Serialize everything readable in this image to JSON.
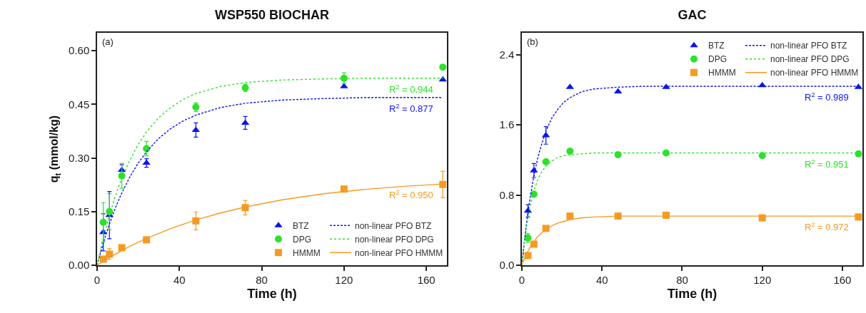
{
  "chart_data": [
    {
      "type": "scatter",
      "title": "WSP550 BIOCHAR",
      "xlabel": "Time (h)",
      "ylabel": "q$_{t}$ (mmol/kg)",
      "xlim": [
        0,
        170
      ],
      "xticks": [
        0,
        40,
        80,
        120,
        160
      ],
      "ylim": [
        0,
        0.65
      ],
      "yticks": [
        {
          "value": 0,
          "label": "0.00"
        },
        {
          "value": 0.15,
          "label": "0.15"
        },
        {
          "value": 0.3,
          "label": "0.30"
        },
        {
          "value": 0.45,
          "label": "0.45"
        },
        {
          "value": 0.6,
          "label": "0.60"
        }
      ],
      "grid": false,
      "legend": "bottom right",
      "annotations": [
        "(a)",
        "R$^{2}$ = 0.877",
        "R$^{2}$ = 0.944",
        "R$^{2}$ = 0.950"
      ],
      "series": [
        {
          "name": "BTZ",
          "type": "scatter",
          "marker": "triangle",
          "color": "#0a14f0",
          "x": [
            3,
            6,
            12,
            24,
            48,
            72,
            120,
            168
          ],
          "values": [
            0.092,
            0.14,
            0.266,
            0.286,
            0.378,
            0.398,
            0.5,
            0.519
          ],
          "errors": [
            0.052,
            0.066,
            0.015,
            0.012,
            0.02,
            0.018,
            null,
            null
          ]
        },
        {
          "name": "DPG",
          "type": "scatter",
          "marker": "circle",
          "color": "#2be22b",
          "x": [
            3,
            6,
            12,
            24,
            48,
            72,
            120,
            168
          ],
          "values": [
            0.12,
            0.15,
            0.25,
            0.326,
            0.442,
            0.496,
            0.523,
            0.554
          ],
          "errors": [
            0.055,
            0.05,
            0.035,
            0.02,
            0.012,
            0.01,
            0.015,
            null
          ]
        },
        {
          "name": "HMMM",
          "type": "scatter",
          "marker": "square",
          "color": "#f59a23",
          "x": [
            3,
            6,
            12,
            24,
            48,
            72,
            120,
            168
          ],
          "values": [
            0.017,
            0.031,
            0.049,
            0.071,
            0.124,
            0.161,
            0.213,
            0.226
          ],
          "errors": [
            null,
            0.015,
            null,
            null,
            0.025,
            0.02,
            0.008,
            0.037
          ]
        },
        {
          "name": "non-linear PFO BTZ",
          "type": "line",
          "line_style": "dashed",
          "color": "#0a14f0",
          "x": [
            0,
            2,
            4,
            6,
            8,
            10,
            12,
            16,
            20,
            24,
            30,
            36,
            42,
            48,
            60,
            72,
            90,
            110,
            130,
            150,
            168
          ],
          "values": [
            0,
            0.042,
            0.08,
            0.115,
            0.147,
            0.176,
            0.202,
            0.248,
            0.286,
            0.317,
            0.355,
            0.383,
            0.404,
            0.42,
            0.441,
            0.453,
            0.462,
            0.466,
            0.469,
            0.469,
            0.469
          ]
        },
        {
          "name": "non-linear PFO DPG",
          "type": "line",
          "line_style": "dotted",
          "color": "#2be22b",
          "x": [
            0,
            2,
            4,
            6,
            8,
            10,
            12,
            16,
            20,
            24,
            30,
            36,
            42,
            48,
            60,
            72,
            90,
            110,
            130,
            150,
            168
          ],
          "values": [
            0,
            0.052,
            0.098,
            0.14,
            0.178,
            0.212,
            0.243,
            0.295,
            0.338,
            0.373,
            0.413,
            0.442,
            0.464,
            0.48,
            0.5,
            0.511,
            0.518,
            0.521,
            0.523,
            0.523,
            0.523
          ]
        },
        {
          "name": "non-linear PFO HMMM",
          "type": "line",
          "line_style": "solid",
          "color": "#f59a23",
          "x": [
            0,
            2,
            4,
            6,
            8,
            10,
            12,
            16,
            20,
            24,
            30,
            36,
            42,
            48,
            60,
            72,
            90,
            110,
            130,
            150,
            168
          ],
          "values": [
            0,
            0.007,
            0.014,
            0.021,
            0.028,
            0.034,
            0.041,
            0.053,
            0.064,
            0.075,
            0.089,
            0.103,
            0.115,
            0.127,
            0.146,
            0.163,
            0.183,
            0.2,
            0.212,
            0.221,
            0.227
          ]
        }
      ]
    },
    {
      "type": "scatter",
      "title": "GAC",
      "xlabel": "Time (h)",
      "xlim": [
        0,
        170
      ],
      "xticks": [
        0,
        40,
        80,
        120,
        160
      ],
      "ylim": [
        0,
        2.65
      ],
      "yticks": [
        {
          "value": 0,
          "label": "0.0"
        },
        {
          "value": 0.8,
          "label": "0.8"
        },
        {
          "value": 1.6,
          "label": "1.6"
        },
        {
          "value": 2.4,
          "label": "2.4"
        }
      ],
      "grid": false,
      "legend": "top right",
      "annotations": [
        "(b)",
        "R$^{2}$ = 0.989",
        "R$^{2}$ = 0.951",
        "R$^{2}$ = 0.972"
      ],
      "series": [
        {
          "name": "BTZ",
          "type": "scatter",
          "marker": "triangle",
          "color": "#0a14f0",
          "x": [
            3,
            6,
            12,
            24,
            48,
            72,
            120,
            168
          ],
          "values": [
            0.62,
            1.08,
            1.48,
            2.03,
            1.98,
            2.03,
            2.05,
            2.03
          ],
          "errors": [
            0.07,
            0.08,
            0.1,
            null,
            null,
            null,
            null,
            null
          ]
        },
        {
          "name": "DPG",
          "type": "scatter",
          "marker": "circle",
          "color": "#2be22b",
          "x": [
            3,
            6,
            12,
            24,
            48,
            72,
            120,
            168
          ],
          "values": [
            0.31,
            0.81,
            1.18,
            1.3,
            1.26,
            1.28,
            1.25,
            1.27
          ],
          "errors": [
            0.05,
            null,
            null,
            null,
            null,
            null,
            null,
            null
          ]
        },
        {
          "name": "HMMM",
          "type": "scatter",
          "marker": "square",
          "color": "#f59a23",
          "x": [
            3,
            6,
            12,
            24,
            48,
            72,
            120,
            168
          ],
          "values": [
            0.11,
            0.24,
            0.42,
            0.56,
            0.56,
            0.57,
            0.54,
            0.55
          ]
        },
        {
          "name": "non-linear PFO BTZ",
          "type": "line",
          "line_style": "dashed",
          "color": "#0a14f0",
          "x": [
            0,
            1,
            2,
            3,
            4,
            6,
            8,
            10,
            12,
            15,
            18,
            21,
            24,
            30,
            36,
            48,
            60,
            168
          ],
          "values": [
            0,
            0.22,
            0.42,
            0.6,
            0.75,
            1.02,
            1.23,
            1.39,
            1.53,
            1.68,
            1.78,
            1.86,
            1.91,
            1.98,
            2.01,
            2.03,
            2.04,
            2.04
          ]
        },
        {
          "name": "non-linear PFO DPG",
          "type": "line",
          "line_style": "dotted",
          "color": "#2be22b",
          "x": [
            0,
            1,
            2,
            3,
            4,
            6,
            8,
            10,
            12,
            15,
            18,
            21,
            24,
            30,
            36,
            48,
            60,
            168
          ],
          "values": [
            0,
            0.21,
            0.39,
            0.53,
            0.66,
            0.85,
            0.98,
            1.07,
            1.13,
            1.19,
            1.23,
            1.25,
            1.26,
            1.27,
            1.28,
            1.28,
            1.28,
            1.28
          ]
        },
        {
          "name": "non-linear PFO HMMM",
          "type": "line",
          "line_style": "solid",
          "color": "#f59a23",
          "x": [
            0,
            1,
            2,
            3,
            4,
            6,
            8,
            10,
            12,
            15,
            18,
            21,
            24,
            30,
            36,
            48,
            60,
            168
          ],
          "values": [
            0,
            0.06,
            0.11,
            0.16,
            0.2,
            0.27,
            0.33,
            0.37,
            0.41,
            0.45,
            0.48,
            0.5,
            0.52,
            0.54,
            0.55,
            0.56,
            0.56,
            0.56
          ]
        }
      ]
    }
  ]
}
